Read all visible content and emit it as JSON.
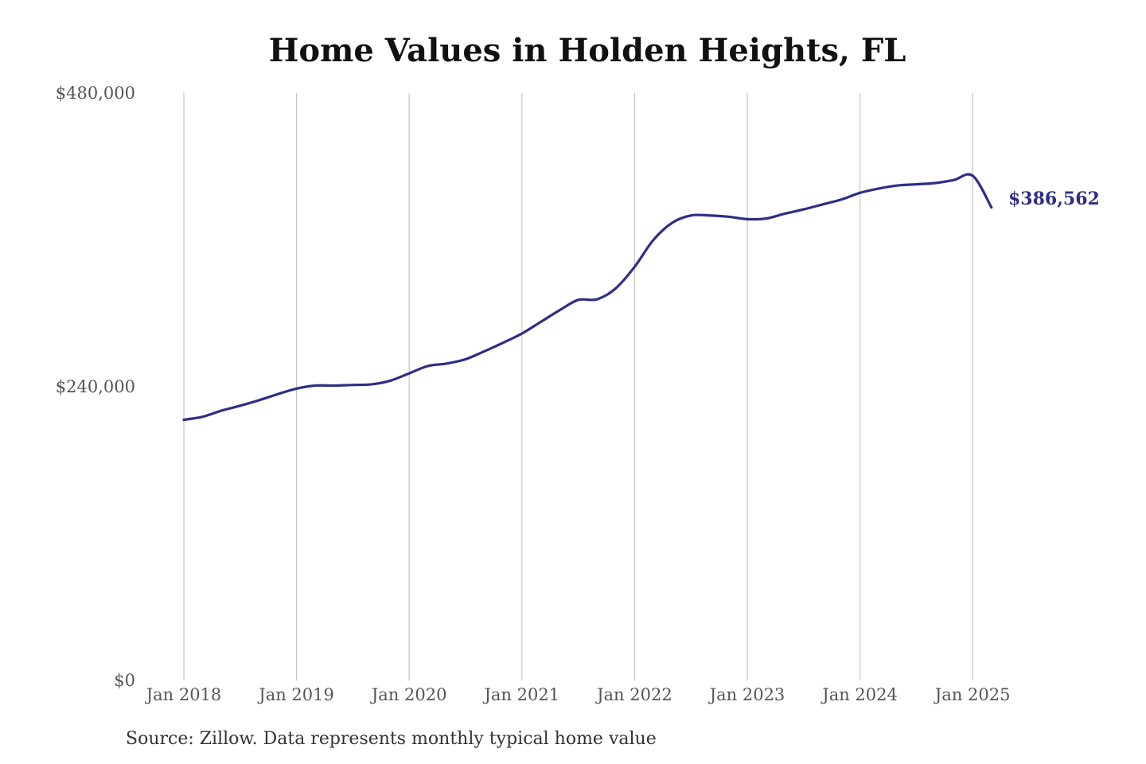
{
  "chart_data": {
    "type": "line",
    "title": "Home Values in Holden Heights, FL",
    "source": "Source: Zillow. Data represents monthly typical home value",
    "xlabel": "",
    "ylabel": "",
    "ylim": [
      0,
      480000
    ],
    "y_ticks": [
      0,
      240000,
      480000
    ],
    "y_tick_labels": [
      "$0",
      "$240,000",
      "$480,000"
    ],
    "x_ticks": [
      "2018-01",
      "2019-01",
      "2020-01",
      "2021-01",
      "2022-01",
      "2023-01",
      "2024-01",
      "2025-01"
    ],
    "x_tick_labels": [
      "Jan 2018",
      "Jan 2019",
      "Jan 2020",
      "Jan 2021",
      "Jan 2022",
      "Jan 2023",
      "Jan 2024",
      "Jan 2025"
    ],
    "xlim": [
      "2018-01",
      "2025-03"
    ],
    "grid": "vertical",
    "line_color": "#2e2e86",
    "end_label": "$386,562",
    "series": [
      {
        "x": [
          "2018-01",
          "2018-03",
          "2018-05",
          "2018-07",
          "2018-09",
          "2018-11",
          "2019-01",
          "2019-03",
          "2019-05",
          "2019-07",
          "2019-09",
          "2019-11",
          "2020-01",
          "2020-03",
          "2020-05",
          "2020-07",
          "2020-09",
          "2020-11",
          "2021-01",
          "2021-03",
          "2021-05",
          "2021-07",
          "2021-09",
          "2021-11",
          "2022-01",
          "2022-03",
          "2022-05",
          "2022-07",
          "2022-09",
          "2022-11",
          "2023-01",
          "2023-03",
          "2023-05",
          "2023-07",
          "2023-09",
          "2023-11",
          "2024-01",
          "2024-03",
          "2024-05",
          "2024-07",
          "2024-09",
          "2024-11",
          "2025-01",
          "2025-03"
        ],
        "values": [
          213000,
          215500,
          220500,
          224500,
          229000,
          234000,
          238500,
          241000,
          241000,
          241500,
          242000,
          245000,
          251000,
          257000,
          259000,
          262500,
          269000,
          276000,
          283500,
          293000,
          302500,
          311000,
          311500,
          320500,
          338000,
          360000,
          374000,
          380000,
          380000,
          379000,
          377000,
          377500,
          381500,
          385000,
          389000,
          393000,
          398500,
          402000,
          404500,
          405500,
          406500,
          409000,
          412500,
          386562
        ]
      }
    ]
  }
}
